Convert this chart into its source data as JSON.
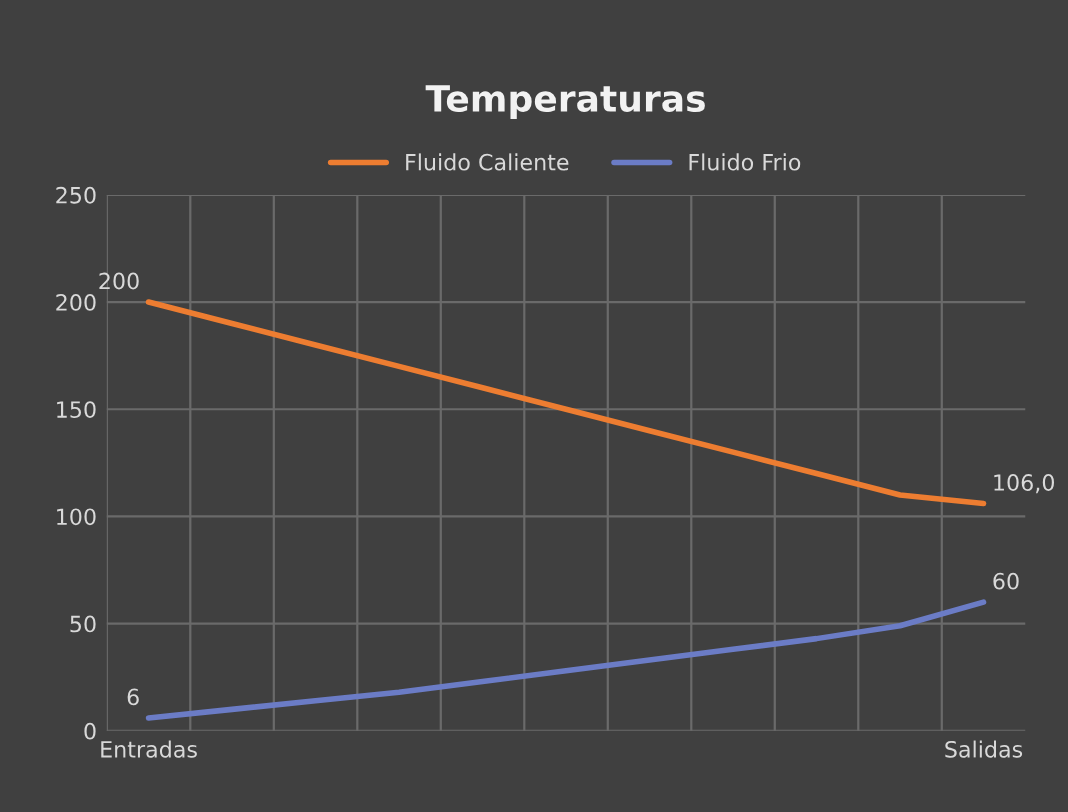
{
  "chart_data": {
    "type": "line",
    "title": "Temperaturas",
    "categories": [
      "Entradas",
      null,
      null,
      null,
      null,
      null,
      null,
      null,
      null,
      null,
      "Salidas"
    ],
    "series": [
      {
        "name": "Fluido Caliente",
        "color": "#ed7d31",
        "values": [
          200,
          190,
          180,
          170,
          160,
          150,
          140,
          130,
          120,
          110,
          106
        ],
        "value_labels": [
          "200",
          null,
          null,
          null,
          null,
          null,
          null,
          null,
          null,
          null,
          "106,0"
        ]
      },
      {
        "name": "Fluido Frio",
        "color": "#6b7cc6",
        "values": [
          6,
          10,
          14,
          18,
          23,
          28,
          33,
          38,
          43,
          49,
          60
        ],
        "value_labels": [
          "6",
          null,
          null,
          null,
          null,
          null,
          null,
          null,
          null,
          null,
          "60"
        ]
      }
    ],
    "ylim": [
      0,
      250
    ],
    "yticks": [
      0,
      50,
      100,
      150,
      200,
      250
    ],
    "grid": true,
    "legend": "top",
    "marker": "none",
    "line_style": "solid"
  }
}
